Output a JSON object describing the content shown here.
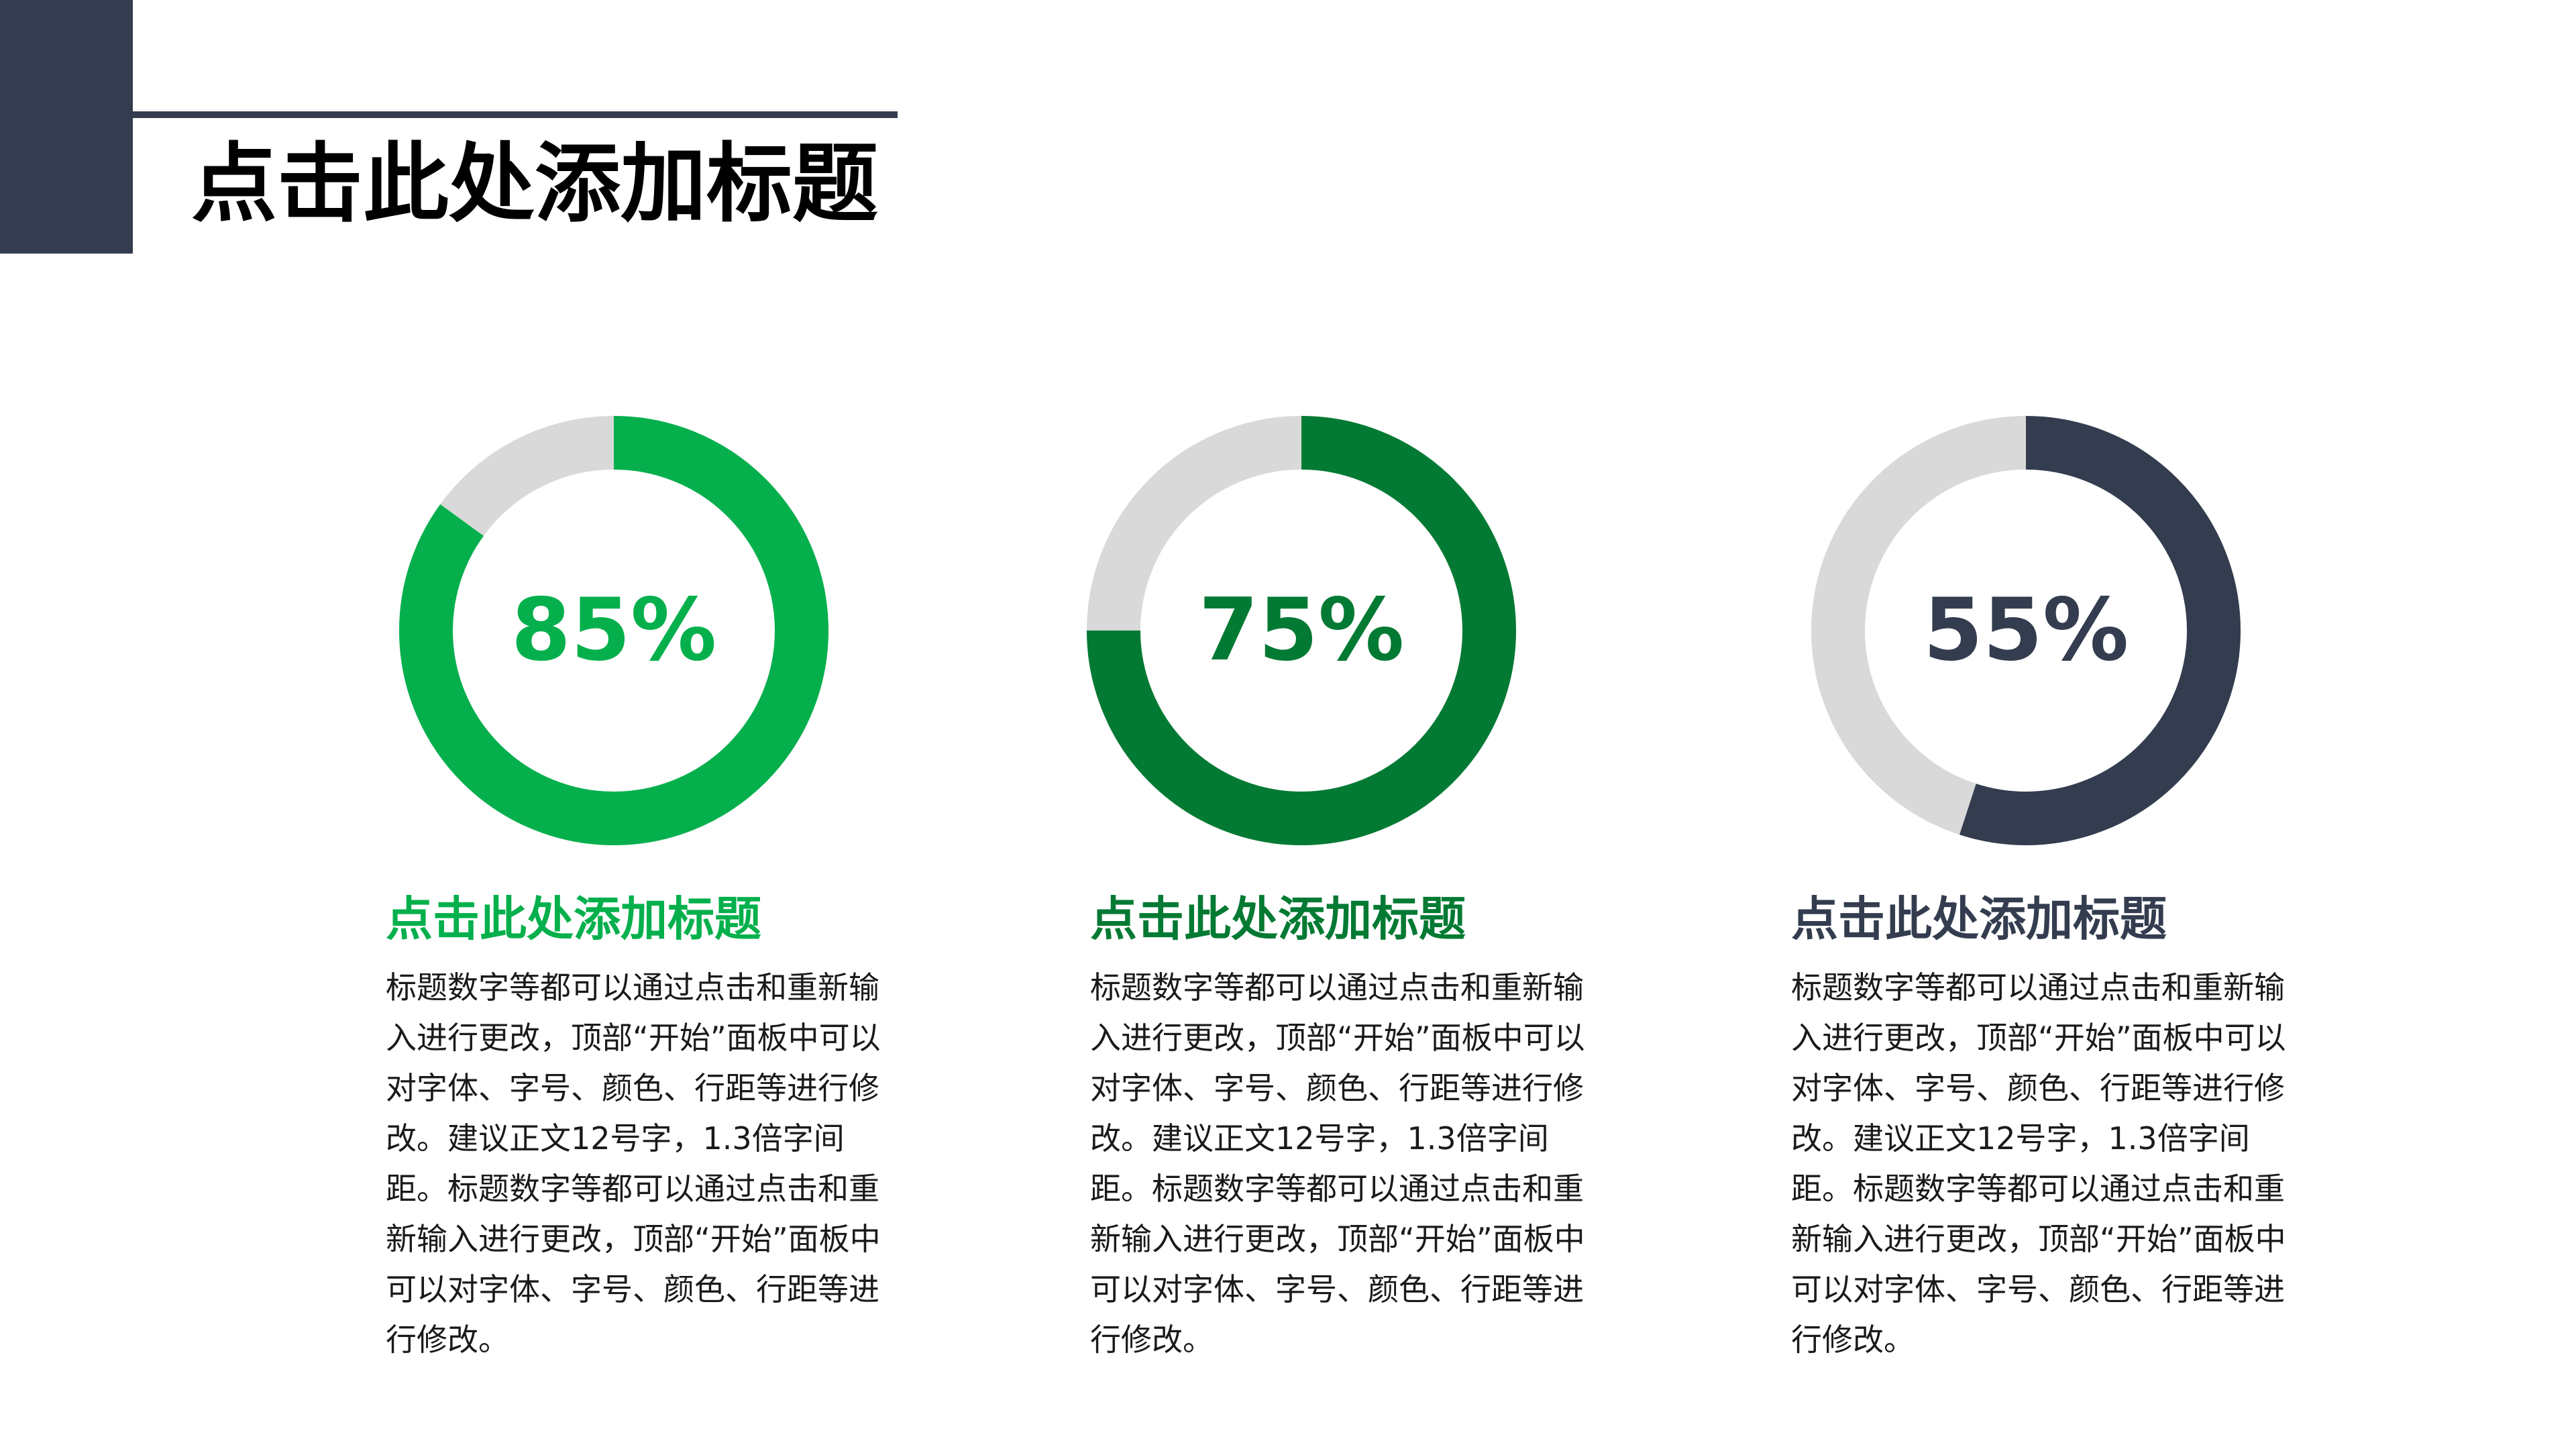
{
  "slide": {
    "title": "点击此处添加标题",
    "colors": {
      "dark": "#333d4f",
      "track": "#d9d9d9"
    }
  },
  "cards": [
    {
      "percent": 85,
      "label": "85%",
      "color": "#05b04c",
      "heading": "点击此处添加标题",
      "body": "标题数字等都可以通过点击和重新输入进行更改，顶部“开始”面板中可以对字体、字号、颜色、行距等进行修改。建议正文12号字，1.3倍字间距。标题数字等都可以通过点击和重新输入进行更改，顶部“开始”面板中可以对字体、字号、颜色、行距等进行修改。"
    },
    {
      "percent": 75,
      "label": "75%",
      "color": "#037a33",
      "heading": "点击此处添加标题",
      "body": "标题数字等都可以通过点击和重新输入进行更改，顶部“开始”面板中可以对字体、字号、颜色、行距等进行修改。建议正文12号字，1.3倍字间距。标题数字等都可以通过点击和重新输入进行更改，顶部“开始”面板中可以对字体、字号、颜色、行距等进行修改。"
    },
    {
      "percent": 55,
      "label": "55%",
      "color": "#333d4f",
      "heading": "点击此处添加标题",
      "body": "标题数字等都可以通过点击和重新输入进行更改，顶部“开始”面板中可以对字体、字号、颜色、行距等进行修改。建议正文12号字，1.3倍字间距。标题数字等都可以通过点击和重新输入进行更改，顶部“开始”面板中可以对字体、字号、颜色、行距等进行修改。"
    }
  ]
}
